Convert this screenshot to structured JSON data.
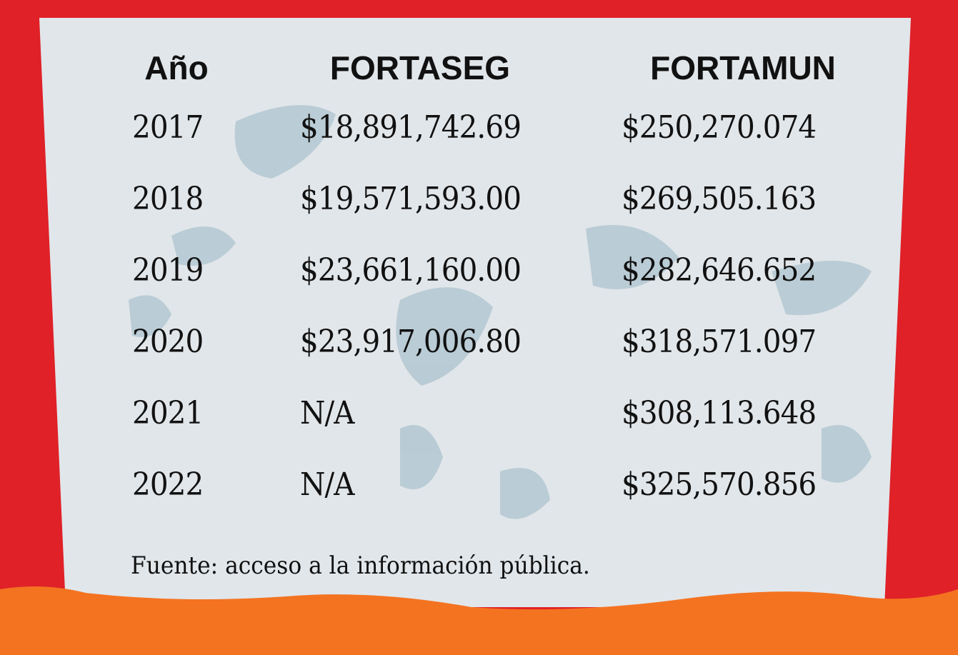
{
  "colors": {
    "background": "#e02128",
    "card": "#e1e6ea",
    "texture": "#a9c0cc",
    "bottom_wave": "#f47321",
    "text": "#111111"
  },
  "chart_data": {
    "type": "table",
    "columns": [
      "Año",
      "FORTASEG",
      "FORTAMUN"
    ],
    "rows": [
      [
        "2017",
        "$18,891,742.69",
        "$250,270.074"
      ],
      [
        "2018",
        "$19,571,593.00",
        "$269,505.163"
      ],
      [
        "2019",
        "$23,661,160.00",
        "$282,646.652"
      ],
      [
        "2020",
        "$23,917,006.80",
        "$318,571.097"
      ],
      [
        "2021",
        "N/A",
        "$308,113.648"
      ],
      [
        "2022",
        "N/A",
        "$325,570.856"
      ]
    ]
  },
  "footer": "Fuente: acceso a la información pública."
}
